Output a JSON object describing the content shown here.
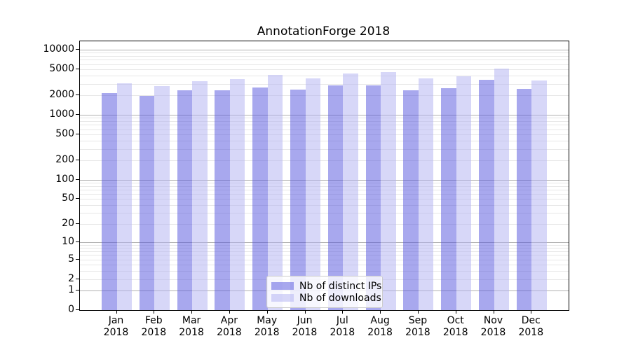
{
  "chart_data": {
    "type": "bar",
    "title": "AnnotationForge 2018",
    "xlabel": "",
    "ylabel": "",
    "yscale": "symlog",
    "ylim": [
      0,
      13450
    ],
    "grid": true,
    "legend_position": "lower center",
    "yticks": [
      10000,
      5000,
      2000,
      1000,
      500,
      200,
      100,
      50,
      20,
      10,
      5,
      2,
      1,
      0
    ],
    "major_gridlines": [
      1,
      10,
      100,
      1000,
      10000
    ],
    "categories": [
      "Jan 2018",
      "Feb 2018",
      "Mar 2018",
      "Apr 2018",
      "May 2018",
      "Jun 2018",
      "Jul 2018",
      "Aug 2018",
      "Sep 2018",
      "Oct 2018",
      "Nov 2018",
      "Dec 2018"
    ],
    "series": [
      {
        "name": "Nb of distinct IPs",
        "color": "rgba(82,82,222,0.5)",
        "values": [
          2180,
          1970,
          2400,
          2370,
          2650,
          2430,
          2860,
          2840,
          2400,
          2570,
          3460,
          2470
        ]
      },
      {
        "name": "Nb of downloads",
        "color": "rgba(175,175,242,0.5)",
        "values": [
          3080,
          2790,
          3290,
          3500,
          4110,
          3630,
          4290,
          4570,
          3660,
          3940,
          5170,
          3350
        ]
      }
    ],
    "colors": {
      "major_grid": "#b0b0b0",
      "minor_grid": "#e7e7e7",
      "spine": "#000000",
      "text": "#000000",
      "background": "#ffffff"
    }
  }
}
